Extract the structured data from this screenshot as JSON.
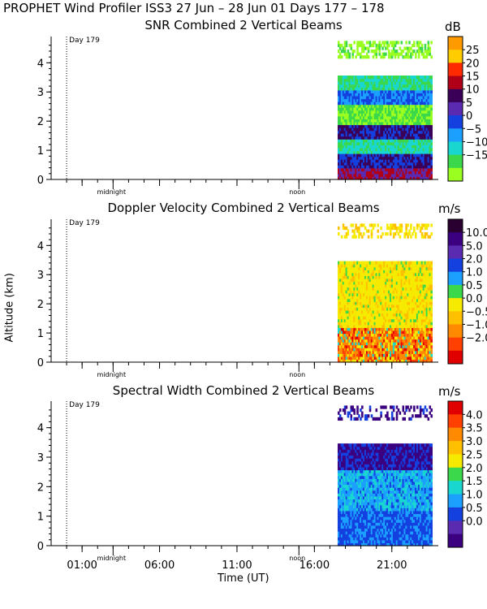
{
  "header": {
    "title": "PROPHET Wind Profiler ISS3  27 Jun – 28 Jun 01 Days 177 – 178"
  },
  "axes": {
    "ylabel": "Altitude (km)",
    "xlabel": "Time (UT)",
    "y_ticks": [
      "0",
      "1",
      "2",
      "3",
      "4"
    ],
    "x_ticks": [
      "01:00",
      "06:00",
      "11:00",
      "16:00",
      "21:00"
    ],
    "x_tick_hours": [
      1,
      6,
      11,
      16,
      21
    ],
    "marker_labels": [
      "midnight",
      "noon"
    ],
    "marker_hours": [
      3,
      15
    ],
    "day_label": "Day 179",
    "day_marker_hour": 0
  },
  "chart_data": [
    {
      "type": "heatmap",
      "title": "SNR Combined 2 Vertical Beams",
      "unit": "dB",
      "colorbar_ticks": [
        "25",
        "20",
        "15",
        "10",
        "5",
        "0",
        "−5",
        "−10",
        "−15"
      ],
      "colorbar_colors": [
        "#ff9a00",
        "#ffcc00",
        "#ff2a00",
        "#b00018",
        "#3a0058",
        "#5a2ab0",
        "#1440e0",
        "#1ca0ff",
        "#19d6d0",
        "#3ad84a",
        "#9aff20"
      ],
      "xlim": [
        -1,
        24
      ],
      "ylim": [
        0,
        4.9
      ],
      "data_start_hour": 17.5,
      "data_end_hour": 23.6
    },
    {
      "type": "heatmap",
      "title": "Doppler Velocity Combined 2 Vertical Beams",
      "unit": "m/s",
      "colorbar_ticks": [
        "10.0",
        "5.0",
        "2.0",
        "1.0",
        "0.5",
        "0.0",
        "−0.5",
        "−1.0",
        "−2.0"
      ],
      "colorbar_colors": [
        "#2a0030",
        "#3a0080",
        "#5a2ab0",
        "#1440e0",
        "#1ca0ff",
        "#3ad84a",
        "#f5ea00",
        "#ffc000",
        "#ff8a00",
        "#ff4000",
        "#e00000"
      ],
      "xlim": [
        -1,
        24
      ],
      "ylim": [
        0,
        4.9
      ],
      "data_start_hour": 17.5,
      "data_end_hour": 23.6
    },
    {
      "type": "heatmap",
      "title": "Spectral Width Combined 2 Vertical Beams",
      "unit": "m/s",
      "colorbar_ticks": [
        "4.0",
        "3.5",
        "3.0",
        "2.5",
        "2.0",
        "1.5",
        "1.0",
        "0.5",
        "0.0"
      ],
      "colorbar_colors": [
        "#e00000",
        "#ff4000",
        "#ff8a00",
        "#ffc000",
        "#f5ea00",
        "#3ad84a",
        "#19d6d0",
        "#1ca0ff",
        "#1440e0",
        "#5a2ab0",
        "#3a0080"
      ],
      "xlim": [
        -1,
        24
      ],
      "ylim": [
        0,
        4.9
      ],
      "data_start_hour": 17.5,
      "data_end_hour": 23.6
    }
  ]
}
